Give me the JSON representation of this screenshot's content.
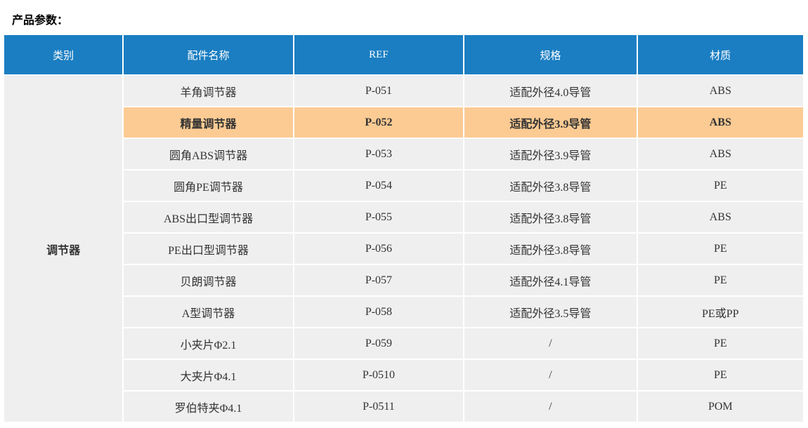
{
  "page": {
    "title": "产品参数："
  },
  "colors": {
    "header_bg": "#1b7ec2",
    "header_text": "#ffffff",
    "row_bg": "#efefef",
    "highlight_bg": "#fbcb93",
    "cell_text": "#333333",
    "divider": "#ffffff",
    "title_text": "#000000",
    "page_bg": "#ffffff"
  },
  "table": {
    "headers": [
      "类别",
      "配件名称",
      "REF",
      "规格",
      "材质"
    ],
    "category": "调节器",
    "rows": [
      {
        "name": "羊角调节器",
        "ref": "P-051",
        "spec": "适配外径4.0导管",
        "material": "ABS",
        "highlighted": false
      },
      {
        "name": "精量调节器",
        "ref": "P-052",
        "spec": "适配外径3.9导管",
        "material": "ABS",
        "highlighted": true
      },
      {
        "name": "圆角ABS调节器",
        "ref": "P-053",
        "spec": "适配外径3.9导管",
        "material": "ABS",
        "highlighted": false
      },
      {
        "name": "圆角PE调节器",
        "ref": "P-054",
        "spec": "适配外径3.8导管",
        "material": "PE",
        "highlighted": false
      },
      {
        "name": "ABS出口型调节器",
        "ref": "P-055",
        "spec": "适配外径3.8导管",
        "material": "ABS",
        "highlighted": false
      },
      {
        "name": "PE出口型调节器",
        "ref": "P-056",
        "spec": "适配外径3.8导管",
        "material": "PE",
        "highlighted": false
      },
      {
        "name": "贝朗调节器",
        "ref": "P-057",
        "spec": "适配外径4.1导管",
        "material": "PE",
        "highlighted": false
      },
      {
        "name": "A型调节器",
        "ref": "P-058",
        "spec": "适配外径3.5导管",
        "material": "PE或PP",
        "highlighted": false
      },
      {
        "name": "小夹片Φ2.1",
        "ref": "P-059",
        "spec": "/",
        "material": "PE",
        "highlighted": false
      },
      {
        "name": "大夹片Φ4.1",
        "ref": "P-0510",
        "spec": "/",
        "material": "PE",
        "highlighted": false
      },
      {
        "name": "罗伯特夹Φ4.1",
        "ref": "P-0511",
        "spec": "/",
        "material": "POM",
        "highlighted": false
      }
    ]
  }
}
